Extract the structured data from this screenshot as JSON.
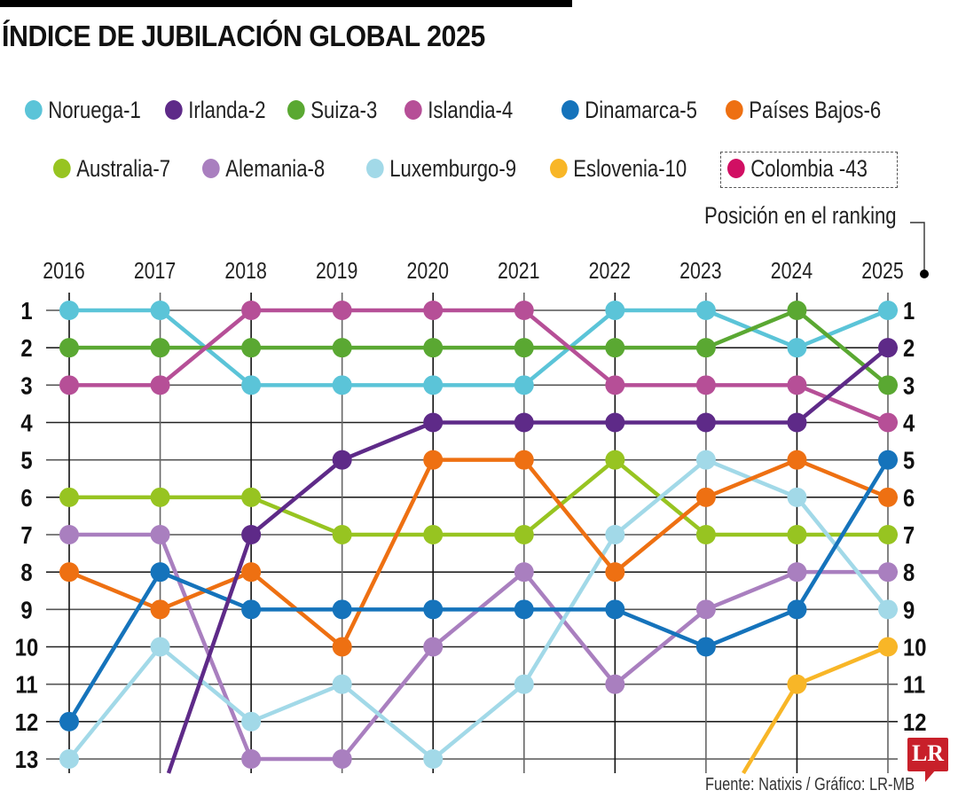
{
  "header": {
    "title": "ÍNDICE DE JUBILACIÓN GLOBAL 2025"
  },
  "legend": [
    {
      "label": "Noruega-1",
      "color": "#5bc4d8"
    },
    {
      "label": "Irlanda-2",
      "color": "#5e2a88"
    },
    {
      "label": "Suiza-3",
      "color": "#5aa832"
    },
    {
      "label": "Islandia-4",
      "color": "#b64f97"
    },
    {
      "label": "Dinamarca-5",
      "color": "#1573bb"
    },
    {
      "label": "Países Bajos-6",
      "color": "#ee7012"
    },
    {
      "label": "Australia-7",
      "color": "#97c421"
    },
    {
      "label": "Alemania-8",
      "color": "#a97fbf"
    },
    {
      "label": "Luxemburgo-9",
      "color": "#a2d9e8"
    },
    {
      "label": "Eslovenia-10",
      "color": "#f8b627"
    },
    {
      "label": "Colombia -43",
      "color": "#d10f63"
    }
  ],
  "ranking_label": "Posición en el ranking",
  "source": "Fuente: Natixis / Gráfico: LR-MB",
  "logo": "LR",
  "chart_data": {
    "type": "line",
    "title": "ÍNDICE DE JUBILACIÓN GLOBAL 2025",
    "xlabel": "",
    "ylabel": "Posición en el ranking",
    "x": [
      "2016",
      "2017",
      "2018",
      "2019",
      "2020",
      "2021",
      "2022",
      "2023",
      "2024",
      "2025"
    ],
    "y_ticks": [
      "1",
      "2",
      "3",
      "4",
      "5",
      "6",
      "7",
      "8",
      "9",
      "10",
      "11",
      "12",
      "13"
    ],
    "ylim": [
      1,
      13
    ],
    "y_inverted": true,
    "grid": true,
    "legend_position": "top",
    "note": "null = not shown; values above 13 are off-chart (line exits bottom)",
    "series": [
      {
        "name": "Noruega",
        "color": "#5bc4d8",
        "values": [
          1,
          1,
          3,
          3,
          3,
          3,
          1,
          1,
          2,
          1
        ]
      },
      {
        "name": "Suiza",
        "color": "#5aa832",
        "values": [
          2,
          2,
          2,
          2,
          2,
          2,
          2,
          2,
          1,
          3
        ]
      },
      {
        "name": "Islandia",
        "color": "#b64f97",
        "values": [
          3,
          3,
          1,
          1,
          1,
          1,
          3,
          3,
          3,
          4
        ]
      },
      {
        "name": "Australia",
        "color": "#97c421",
        "values": [
          6,
          6,
          6,
          7,
          7,
          7,
          5,
          7,
          7,
          7
        ]
      },
      {
        "name": "Alemania",
        "color": "#a97fbf",
        "values": [
          7,
          7,
          13,
          13,
          10,
          8,
          11,
          9,
          8,
          8
        ]
      },
      {
        "name": "Luxemburgo",
        "color": "#a2d9e8",
        "values": [
          13,
          10,
          12,
          11,
          13,
          11,
          7,
          5,
          6,
          9
        ]
      },
      {
        "name": "Países Bajos",
        "color": "#ee7012",
        "values": [
          8,
          9,
          8,
          10,
          5,
          5,
          8,
          6,
          5,
          6
        ]
      },
      {
        "name": "Dinamarca",
        "color": "#1573bb",
        "values": [
          12,
          8,
          9,
          9,
          9,
          9,
          9,
          10,
          9,
          5
        ]
      },
      {
        "name": "Irlanda",
        "color": "#5e2a88",
        "values": [
          null,
          "offchart",
          7,
          5,
          4,
          4,
          4,
          4,
          4,
          2
        ]
      },
      {
        "name": "Eslovenia",
        "color": "#f8b627",
        "values": [
          null,
          null,
          null,
          null,
          null,
          null,
          null,
          "offchart",
          11,
          10
        ]
      }
    ]
  }
}
